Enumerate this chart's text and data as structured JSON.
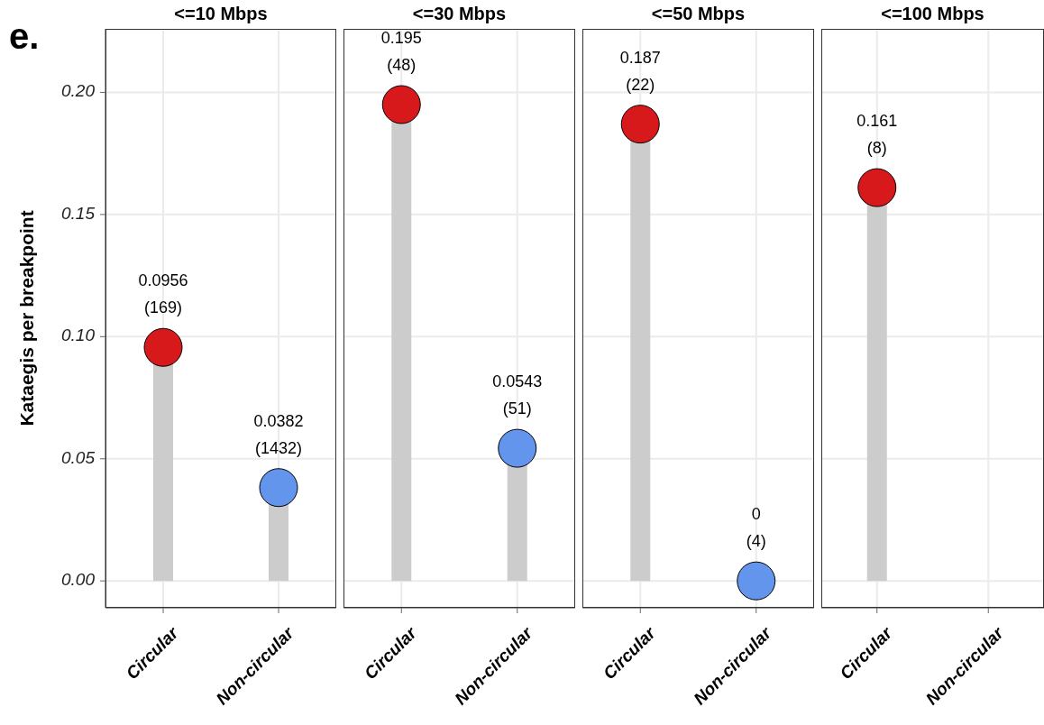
{
  "chart_data": [
    {
      "type": "lollipop",
      "title": "<=10 Mbps",
      "ylabel": "Kataegis per breakpoint",
      "annotations": [
        "e."
      ],
      "categories": [
        "Circular",
        "Non-circular"
      ],
      "values": [
        0.0956,
        0.0382
      ],
      "value_labels": [
        "0.0956\n(169)",
        "0.0382\n(1432)"
      ],
      "colors": [
        "#d7191c",
        "#6495ed"
      ],
      "ylim": [
        -0.011,
        0.226
      ],
      "yticks": [
        {
          "value": 0,
          "label": "0.00"
        },
        {
          "value": 0.05,
          "label": "0.05"
        },
        {
          "value": 0.1,
          "label": "0.10"
        },
        {
          "value": 0.15,
          "label": "0.15"
        },
        {
          "value": 0.2,
          "label": "0.20"
        }
      ],
      "grid": true
    },
    {
      "type": "lollipop",
      "title": "<=30 Mbps",
      "categories": [
        "Circular",
        "Non-circular"
      ],
      "values": [
        0.195,
        0.0543
      ],
      "value_labels": [
        "0.195\n(48)",
        "0.0543\n(51)"
      ],
      "colors": [
        "#d7191c",
        "#6495ed"
      ],
      "ylim": [
        -0.011,
        0.226
      ],
      "yticks": [
        0,
        0.05,
        0.1,
        0.15,
        0.2
      ],
      "tick_labels": "x",
      "grid": true
    },
    {
      "type": "lollipop",
      "title": "<=50 Mbps",
      "categories": [
        "Circular",
        "Non-circular"
      ],
      "values": [
        0.187,
        0
      ],
      "value_labels": [
        "0.187\n(22)",
        "0\n(4)"
      ],
      "colors": [
        "#d7191c",
        "#6495ed"
      ],
      "ylim": [
        -0.011,
        0.226
      ],
      "yticks": [
        0,
        0.05,
        0.1,
        0.15,
        0.2
      ],
      "tick_labels": "x",
      "grid": true
    },
    {
      "type": "lollipop",
      "title": "<=100 Mbps",
      "categories": [
        "Circular",
        "Non-circular"
      ],
      "values": [
        0.161,
        null
      ],
      "value_labels": [
        "0.161\n(8)",
        null
      ],
      "colors": [
        "#d7191c",
        null
      ],
      "ylim": [
        -0.011,
        0.226
      ],
      "yticks": [
        0,
        0.05,
        0.1,
        0.15,
        0.2
      ],
      "tick_labels": "x",
      "grid": true
    }
  ]
}
